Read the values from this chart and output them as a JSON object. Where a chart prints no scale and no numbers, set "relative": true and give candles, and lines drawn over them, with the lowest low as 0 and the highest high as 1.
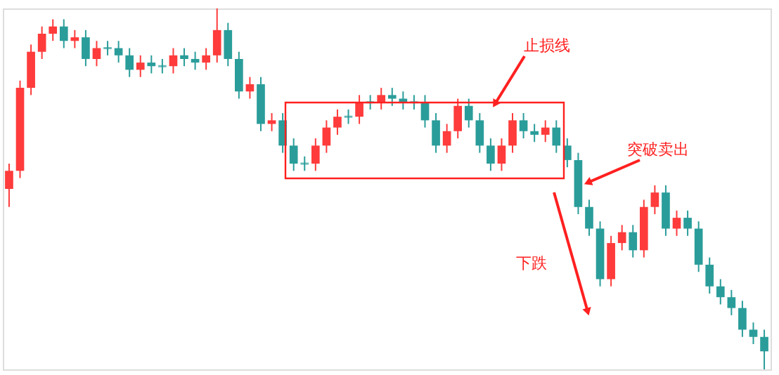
{
  "chart_data": {
    "type": "candlestick",
    "relative": true,
    "categories": [
      null,
      null,
      null,
      null,
      null,
      null,
      null,
      null,
      null,
      null,
      null,
      null,
      null,
      null,
      null,
      null,
      null,
      null,
      null,
      null,
      null,
      null,
      null,
      null,
      null,
      null,
      null,
      null,
      null,
      null,
      null,
      null,
      null,
      null,
      null,
      null,
      null,
      null,
      null,
      null,
      null,
      null,
      null,
      null,
      null,
      null,
      null,
      null,
      null,
      null,
      null,
      null,
      null,
      null,
      null,
      null,
      null,
      null,
      null,
      null,
      null,
      null,
      null,
      null,
      null,
      null,
      null,
      null,
      null,
      null
    ],
    "ohlc": [
      [
        0.5,
        0.57,
        0.45,
        0.55
      ],
      [
        0.55,
        0.8,
        0.53,
        0.78
      ],
      [
        0.78,
        0.9,
        0.76,
        0.88
      ],
      [
        0.88,
        0.95,
        0.86,
        0.93
      ],
      [
        0.93,
        0.97,
        0.91,
        0.95
      ],
      [
        0.95,
        0.97,
        0.89,
        0.91
      ],
      [
        0.91,
        0.94,
        0.89,
        0.92
      ],
      [
        0.92,
        0.94,
        0.84,
        0.86
      ],
      [
        0.86,
        0.91,
        0.84,
        0.89
      ],
      [
        0.89,
        0.91,
        0.87,
        0.89
      ],
      [
        0.89,
        0.91,
        0.85,
        0.87
      ],
      [
        0.87,
        0.89,
        0.81,
        0.83
      ],
      [
        0.83,
        0.87,
        0.81,
        0.85
      ],
      [
        0.85,
        0.87,
        0.82,
        0.84
      ],
      [
        0.84,
        0.86,
        0.82,
        0.84
      ],
      [
        0.84,
        0.89,
        0.82,
        0.87
      ],
      [
        0.87,
        0.89,
        0.84,
        0.86
      ],
      [
        0.86,
        0.88,
        0.83,
        0.85
      ],
      [
        0.85,
        0.89,
        0.83,
        0.87
      ],
      [
        0.87,
        1.0,
        0.85,
        0.94
      ],
      [
        0.94,
        0.96,
        0.84,
        0.86
      ],
      [
        0.86,
        0.88,
        0.75,
        0.77
      ],
      [
        0.77,
        0.81,
        0.75,
        0.79
      ],
      [
        0.79,
        0.81,
        0.66,
        0.68
      ],
      [
        0.68,
        0.71,
        0.66,
        0.69
      ],
      [
        0.69,
        0.71,
        0.6,
        0.62
      ],
      [
        0.62,
        0.64,
        0.55,
        0.57
      ],
      [
        0.57,
        0.59,
        0.55,
        0.57
      ],
      [
        0.57,
        0.64,
        0.55,
        0.62
      ],
      [
        0.62,
        0.69,
        0.6,
        0.67
      ],
      [
        0.67,
        0.72,
        0.65,
        0.7
      ],
      [
        0.7,
        0.72,
        0.68,
        0.7
      ],
      [
        0.7,
        0.76,
        0.68,
        0.74
      ],
      [
        0.74,
        0.76,
        0.72,
        0.74
      ],
      [
        0.74,
        0.78,
        0.72,
        0.76
      ],
      [
        0.76,
        0.78,
        0.73,
        0.75
      ],
      [
        0.75,
        0.77,
        0.72,
        0.74
      ],
      [
        0.74,
        0.76,
        0.72,
        0.74
      ],
      [
        0.74,
        0.76,
        0.67,
        0.69
      ],
      [
        0.69,
        0.71,
        0.6,
        0.62
      ],
      [
        0.62,
        0.68,
        0.6,
        0.66
      ],
      [
        0.66,
        0.75,
        0.64,
        0.73
      ],
      [
        0.73,
        0.75,
        0.67,
        0.69
      ],
      [
        0.69,
        0.71,
        0.6,
        0.62
      ],
      [
        0.62,
        0.64,
        0.55,
        0.57
      ],
      [
        0.57,
        0.64,
        0.55,
        0.62
      ],
      [
        0.62,
        0.71,
        0.6,
        0.69
      ],
      [
        0.69,
        0.71,
        0.64,
        0.66
      ],
      [
        0.66,
        0.68,
        0.63,
        0.65
      ],
      [
        0.65,
        0.69,
        0.63,
        0.67
      ],
      [
        0.67,
        0.69,
        0.6,
        0.62
      ],
      [
        0.62,
        0.64,
        0.56,
        0.58
      ],
      [
        0.58,
        0.6,
        0.43,
        0.45
      ],
      [
        0.45,
        0.47,
        0.37,
        0.39
      ],
      [
        0.39,
        0.41,
        0.23,
        0.25
      ],
      [
        0.25,
        0.37,
        0.23,
        0.35
      ],
      [
        0.35,
        0.4,
        0.33,
        0.38
      ],
      [
        0.38,
        0.4,
        0.31,
        0.33
      ],
      [
        0.33,
        0.47,
        0.31,
        0.45
      ],
      [
        0.45,
        0.51,
        0.43,
        0.49
      ],
      [
        0.49,
        0.51,
        0.37,
        0.39
      ],
      [
        0.39,
        0.44,
        0.37,
        0.42
      ],
      [
        0.42,
        0.44,
        0.37,
        0.39
      ],
      [
        0.39,
        0.41,
        0.27,
        0.29
      ],
      [
        0.29,
        0.31,
        0.21,
        0.23
      ],
      [
        0.23,
        0.25,
        0.18,
        0.2
      ],
      [
        0.2,
        0.22,
        0.15,
        0.17
      ],
      [
        0.17,
        0.19,
        0.09,
        0.11
      ],
      [
        0.11,
        0.13,
        0.07,
        0.09
      ],
      [
        0.09,
        0.11,
        0.0,
        0.05
      ]
    ],
    "colors": [
      "#ff3b3b",
      "#ff3b3b",
      "#ff3b3b",
      "#ff3b3b",
      "#ff3b3b",
      "#2a9d9a",
      "#ff3b3b",
      "#2a9d9a",
      "#ff3b3b",
      "#2a9d9a",
      "#2a9d9a",
      "#2a9d9a",
      "#ff3b3b",
      "#2a9d9a",
      "#2a9d9a",
      "#ff3b3b",
      "#2a9d9a",
      "#2a9d9a",
      "#ff3b3b",
      "#ff3b3b",
      "#2a9d9a",
      "#2a9d9a",
      "#ff3b3b",
      "#2a9d9a",
      "#ff3b3b",
      "#2a9d9a",
      "#2a9d9a",
      "#2a9d9a",
      "#ff3b3b",
      "#ff3b3b",
      "#ff3b3b",
      "#2a9d9a",
      "#ff3b3b",
      "#2a9d9a",
      "#ff3b3b",
      "#2a9d9a",
      "#2a9d9a",
      "#2a9d9a",
      "#2a9d9a",
      "#2a9d9a",
      "#ff3b3b",
      "#ff3b3b",
      "#2a9d9a",
      "#2a9d9a",
      "#2a9d9a",
      "#ff3b3b",
      "#ff3b3b",
      "#2a9d9a",
      "#2a9d9a",
      "#ff3b3b",
      "#2a9d9a",
      "#2a9d9a",
      "#2a9d9a",
      "#2a9d9a",
      "#2a9d9a",
      "#ff3b3b",
      "#ff3b3b",
      "#2a9d9a",
      "#ff3b3b",
      "#ff3b3b",
      "#2a9d9a",
      "#ff3b3b",
      "#2a9d9a",
      "#2a9d9a",
      "#2a9d9a",
      "#2a9d9a",
      "#2a9d9a",
      "#2a9d9a",
      "#2a9d9a",
      "#2a9d9a"
    ],
    "annotations": [
      "止损线",
      "突破卖出",
      "下跌"
    ]
  }
}
